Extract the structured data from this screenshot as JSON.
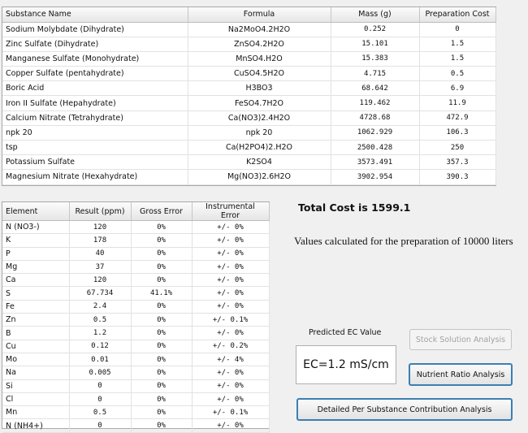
{
  "substances": {
    "headers": [
      "Substance Name",
      "Formula",
      "Mass (g)",
      "Preparation Cost"
    ],
    "rows": [
      [
        "Sodium Molybdate (Dihydrate)",
        "Na2MoO4.2H2O",
        "0.252",
        "0"
      ],
      [
        "Zinc Sulfate (Dihydrate)",
        "ZnSO4.2H2O",
        "15.101",
        "1.5"
      ],
      [
        "Manganese Sulfate (Monohydrate)",
        "MnSO4.H2O",
        "15.383",
        "1.5"
      ],
      [
        "Copper Sulfate (pentahydrate)",
        "CuSO4.5H2O",
        "4.715",
        "0.5"
      ],
      [
        "Boric Acid",
        "H3BO3",
        "68.642",
        "6.9"
      ],
      [
        "Iron II Sulfate (Hepahydrate)",
        "FeSO4.7H2O",
        "119.462",
        "11.9"
      ],
      [
        "Calcium Nitrate (Tetrahydrate)",
        "Ca(NO3)2.4H2O",
        "4728.68",
        "472.9"
      ],
      [
        "npk 20",
        "npk 20",
        "1062.929",
        "106.3"
      ],
      [
        "tsp",
        "Ca(H2PO4)2.H2O",
        "2500.428",
        "250"
      ],
      [
        "Potassium Sulfate",
        "K2SO4",
        "3573.491",
        "357.3"
      ],
      [
        "Magnesium Nitrate (Hexahydrate)",
        "Mg(NO3)2.6H2O",
        "3902.954",
        "390.3"
      ]
    ]
  },
  "elements": {
    "headers": [
      "Element",
      "Result (ppm)",
      "Gross Error",
      "Instrumental Error"
    ],
    "rows": [
      [
        "N (NO3-)",
        "120",
        "0%",
        "+/- 0%"
      ],
      [
        "K",
        "178",
        "0%",
        "+/- 0%"
      ],
      [
        "P",
        "40",
        "0%",
        "+/- 0%"
      ],
      [
        "Mg",
        "37",
        "0%",
        "+/- 0%"
      ],
      [
        "Ca",
        "120",
        "0%",
        "+/- 0%"
      ],
      [
        "S",
        "67.734",
        "41.1%",
        "+/- 0%"
      ],
      [
        "Fe",
        "2.4",
        "0%",
        "+/- 0%"
      ],
      [
        "Zn",
        "0.5",
        "0%",
        "+/- 0.1%"
      ],
      [
        "B",
        "1.2",
        "0%",
        "+/- 0%"
      ],
      [
        "Cu",
        "0.12",
        "0%",
        "+/- 0.2%"
      ],
      [
        "Mo",
        "0.01",
        "0%",
        "+/- 4%"
      ],
      [
        "Na",
        "0.005",
        "0%",
        "+/- 0%"
      ],
      [
        "Si",
        "0",
        "0%",
        "+/- 0%"
      ],
      [
        "Cl",
        "0",
        "0%",
        "+/- 0%"
      ],
      [
        "Mn",
        "0.5",
        "0%",
        "+/- 0.1%"
      ],
      [
        "N (NH4+)",
        "0",
        "0%",
        "+/- 0%"
      ]
    ]
  },
  "summary": {
    "total_cost": "Total Cost is 1599.1",
    "values_note": "Values calculated for the preparation of 10000 liters",
    "ec_label": "Predicted EC Value",
    "ec_value": "EC=1.2 mS/cm"
  },
  "buttons": {
    "stock_solution": "Stock Solution Analysis",
    "nutrient_ratio": "Nutrient Ratio Analysis",
    "detailed_contribution": "Detailed Per Substance Contribution Analysis"
  }
}
